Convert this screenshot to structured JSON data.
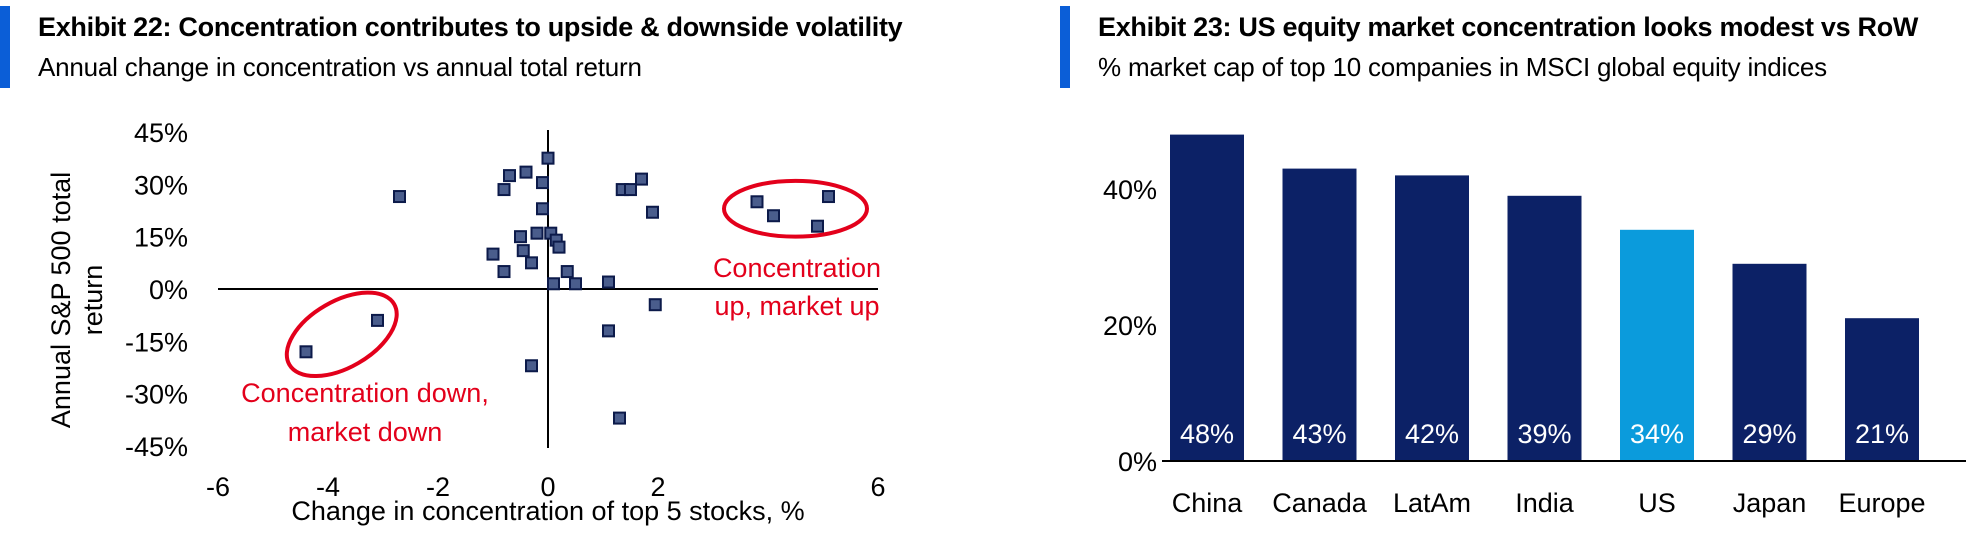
{
  "exhibit22": {
    "title": "Exhibit 22: Concentration contributes to upside & downside volatility",
    "subtitle": "Annual change in concentration vs annual total return"
  },
  "exhibit23": {
    "title": "Exhibit 23: US equity market concentration looks modest vs RoW",
    "subtitle": "% market cap of top 10 companies in MSCI global equity indices"
  },
  "colors": {
    "accent": "#0b5ed7",
    "navy": "#0c2166",
    "highlight": "#0b9bdc",
    "annotation": "#e3001b",
    "marker_fill": "#4a5d8c",
    "marker_edge": "#0c1a4a"
  },
  "chart_data": [
    {
      "type": "scatter",
      "title": "Exhibit 22: Concentration contributes to upside & downside volatility",
      "subtitle": "Annual change in concentration vs annual total return",
      "xlabel": "Change in concentration of top 5 stocks, %",
      "ylabel_lines": [
        "Annual S&P 500 total",
        "return"
      ],
      "xlim": [
        -6,
        6
      ],
      "ylim": [
        -45,
        45
      ],
      "xticks": [
        -6,
        -4,
        -2,
        0,
        2,
        6
      ],
      "xtick_labels": [
        "-6",
        "-4",
        "-2",
        "0",
        "2",
        "6"
      ],
      "yticks": [
        45,
        30,
        15,
        0,
        -15,
        -30,
        -45
      ],
      "ytick_labels": [
        "45%",
        "30%",
        "15%",
        "0%",
        "-15%",
        "-30%",
        "-45%"
      ],
      "points": [
        {
          "x": -4.4,
          "y": -18.0
        },
        {
          "x": -3.1,
          "y": -9.0
        },
        {
          "x": -2.7,
          "y": 26.5
        },
        {
          "x": -1.0,
          "y": 10.0
        },
        {
          "x": -0.8,
          "y": 5.0
        },
        {
          "x": -0.8,
          "y": 28.5
        },
        {
          "x": -0.7,
          "y": 32.5
        },
        {
          "x": -0.5,
          "y": 15.0
        },
        {
          "x": -0.45,
          "y": 11.0
        },
        {
          "x": -0.4,
          "y": 33.5
        },
        {
          "x": -0.3,
          "y": 7.5
        },
        {
          "x": -0.3,
          "y": -22.0
        },
        {
          "x": -0.2,
          "y": 16.0
        },
        {
          "x": -0.1,
          "y": 30.5
        },
        {
          "x": -0.1,
          "y": 23.0
        },
        {
          "x": 0.0,
          "y": 37.5
        },
        {
          "x": 0.05,
          "y": 16.0
        },
        {
          "x": 0.1,
          "y": 1.5
        },
        {
          "x": 0.15,
          "y": 14.0
        },
        {
          "x": 0.2,
          "y": 12.0
        },
        {
          "x": 0.35,
          "y": 5.0
        },
        {
          "x": 0.5,
          "y": 1.5
        },
        {
          "x": 1.1,
          "y": 2.0
        },
        {
          "x": 1.1,
          "y": -12.0
        },
        {
          "x": 1.3,
          "y": -37.0
        },
        {
          "x": 1.35,
          "y": 28.5
        },
        {
          "x": 1.5,
          "y": 28.5
        },
        {
          "x": 1.7,
          "y": 31.5
        },
        {
          "x": 1.9,
          "y": 22.0
        },
        {
          "x": 1.95,
          "y": -4.5
        },
        {
          "x": 3.8,
          "y": 25.0
        },
        {
          "x": 4.1,
          "y": 21.0
        },
        {
          "x": 4.9,
          "y": 18.0
        },
        {
          "x": 5.1,
          "y": 26.5
        }
      ],
      "annotations": [
        {
          "id": "up",
          "lines": [
            "Concentration",
            "up, market up"
          ],
          "ellipse_center": [
            4.5,
            23.0
          ],
          "ellipse_radius": [
            1.3,
            8.0
          ]
        },
        {
          "id": "down",
          "lines": [
            "Concentration down,",
            "market down"
          ],
          "ellipse_center": [
            -3.75,
            -13.0
          ],
          "ellipse_radius": [
            1.1,
            9.5
          ]
        }
      ]
    },
    {
      "type": "bar",
      "title": "Exhibit 23: US equity market concentration looks modest vs RoW",
      "subtitle": "% market cap of top 10 companies in MSCI global equity indices",
      "categories": [
        "China",
        "Canada",
        "LatAm",
        "India",
        "US",
        "Japan",
        "Europe"
      ],
      "values": [
        48,
        43,
        42,
        39,
        34,
        29,
        21
      ],
      "data_labels": [
        "48%",
        "43%",
        "42%",
        "39%",
        "34%",
        "29%",
        "21%"
      ],
      "highlight": "US",
      "ylim": [
        0,
        50
      ],
      "yticks": [
        0,
        20,
        40
      ],
      "ytick_labels": [
        "0%",
        "20%",
        "40%"
      ]
    }
  ]
}
